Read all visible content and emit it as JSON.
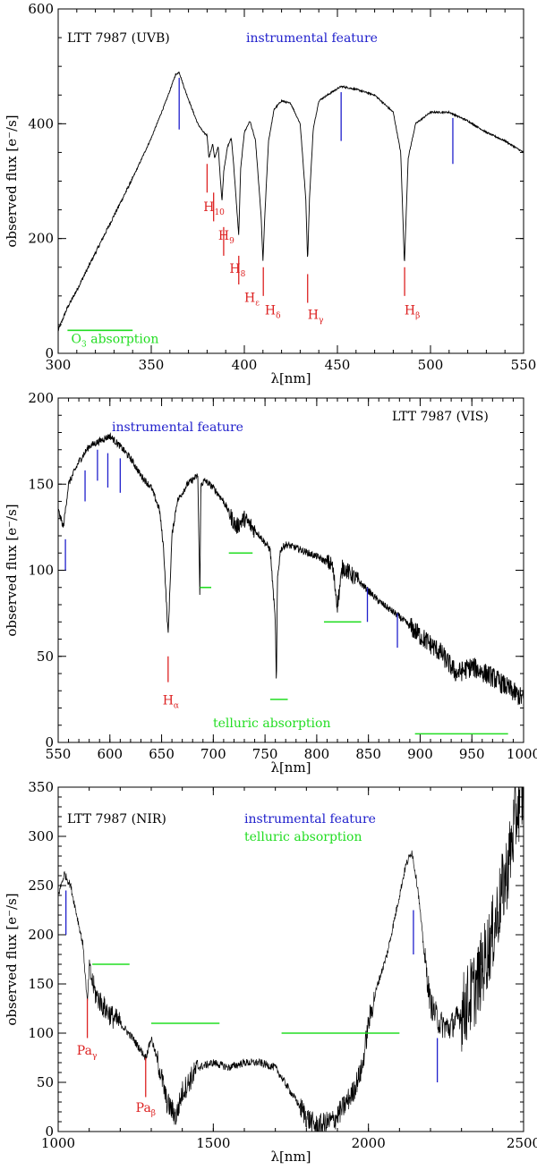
{
  "figure": {
    "colors": {
      "spectrum": "#000000",
      "instrumental": "#2020cc",
      "hydrogen": "#dd2222",
      "telluric": "#22dd22"
    }
  },
  "chart_data": [
    {
      "type": "line",
      "id": "uvb",
      "title": "LTT 7987 (UVB)",
      "xlabel": "λ[nm]",
      "ylabel": "observed flux [e⁻/s]",
      "xlim": [
        300,
        550
      ],
      "ylim": [
        0,
        600
      ],
      "xticks": [
        300,
        350,
        400,
        450,
        500,
        550
      ],
      "yticks": [
        0,
        200,
        400,
        600
      ],
      "xminor": 10,
      "yminor": 50,
      "legend": [
        {
          "text": "instrumental feature",
          "color_key": "instrumental"
        }
      ],
      "series": [
        {
          "name": "LTT 7987 UVB spectrum",
          "x": [
            300,
            305,
            310,
            320,
            330,
            340,
            350,
            358,
            363,
            365,
            368,
            372,
            375,
            378,
            380,
            381,
            383,
            384,
            386,
            387,
            388,
            389,
            391,
            393,
            394,
            396,
            397,
            398,
            400,
            403,
            406,
            409,
            410,
            411,
            413,
            416,
            420,
            425,
            430,
            433,
            434,
            435,
            437,
            440,
            447,
            452,
            460,
            470,
            480,
            484,
            486,
            488,
            492,
            500,
            510,
            520,
            530,
            540,
            550
          ],
          "y": [
            40,
            80,
            110,
            175,
            240,
            305,
            375,
            440,
            485,
            490,
            460,
            425,
            400,
            385,
            380,
            340,
            365,
            340,
            360,
            310,
            265,
            320,
            360,
            375,
            340,
            250,
            205,
            320,
            385,
            405,
            370,
            240,
            160,
            240,
            370,
            425,
            440,
            435,
            400,
            270,
            160,
            270,
            390,
            440,
            455,
            465,
            460,
            450,
            420,
            350,
            155,
            340,
            400,
            420,
            420,
            405,
            385,
            370,
            350
          ]
        }
      ],
      "markers": [
        {
          "x": 365,
          "y1": 390,
          "y2": 480,
          "color_key": "instrumental"
        },
        {
          "x": 452,
          "y1": 370,
          "y2": 455,
          "color_key": "instrumental"
        },
        {
          "x": 512,
          "y1": 330,
          "y2": 410,
          "color_key": "instrumental"
        },
        {
          "x": 380,
          "y1": 280,
          "y2": 330,
          "color_key": "hydrogen"
        },
        {
          "x": 383.5,
          "y1": 230,
          "y2": 280,
          "color_key": "hydrogen"
        },
        {
          "x": 388.9,
          "y1": 170,
          "y2": 220,
          "color_key": "hydrogen"
        },
        {
          "x": 397,
          "y1": 120,
          "y2": 170,
          "color_key": "hydrogen"
        },
        {
          "x": 410.2,
          "y1": 100,
          "y2": 150,
          "color_key": "hydrogen"
        },
        {
          "x": 434,
          "y1": 88,
          "y2": 138,
          "color_key": "hydrogen"
        },
        {
          "x": 486.1,
          "y1": 100,
          "y2": 150,
          "color_key": "hydrogen"
        }
      ],
      "bands": [
        {
          "x1": 305,
          "x2": 340,
          "y": 40,
          "color_key": "telluric"
        }
      ],
      "annotations": [
        {
          "base": "H",
          "sub": "10",
          "x": 378,
          "y": 248,
          "color_key": "hydrogen"
        },
        {
          "base": "H",
          "sub": "9",
          "x": 386,
          "y": 198,
          "color_key": "hydrogen"
        },
        {
          "base": "H",
          "sub": "8",
          "x": 392,
          "y": 140,
          "color_key": "hydrogen"
        },
        {
          "base": "H",
          "sub": "ε",
          "x": 400,
          "y": 90,
          "color_key": "hydrogen"
        },
        {
          "base": "H",
          "sub": "δ",
          "x": 411,
          "y": 68,
          "color_key": "hydrogen"
        },
        {
          "base": "H",
          "sub": "γ",
          "x": 434,
          "y": 60,
          "color_key": "hydrogen"
        },
        {
          "base": "H",
          "sub": "β",
          "x": 486,
          "y": 68,
          "color_key": "hydrogen"
        },
        {
          "base": "O",
          "sub": "3",
          "text": " absorption",
          "x": 307,
          "y": 18,
          "color_key": "telluric"
        }
      ]
    },
    {
      "type": "line",
      "id": "vis",
      "title": "LTT 7987 (VIS)",
      "xlabel": "λ[nm]",
      "ylabel": "observed flux [e⁻/s]",
      "xlim": [
        550,
        1000
      ],
      "ylim": [
        0,
        200
      ],
      "xticks": [
        550,
        600,
        650,
        700,
        750,
        800,
        850,
        900,
        950,
        1000
      ],
      "yticks": [
        0,
        50,
        100,
        150,
        200
      ],
      "xminor": 10,
      "yminor": 10,
      "legend": [
        {
          "text": "instrumental feature",
          "color_key": "instrumental"
        },
        {
          "text": "telluric absorption",
          "color_key": "telluric"
        }
      ],
      "series": [
        {
          "name": "LTT 7987 VIS spectrum",
          "x": [
            550,
            555,
            560,
            570,
            580,
            590,
            600,
            610,
            620,
            630,
            640,
            648,
            652,
            656.3,
            660,
            665,
            675,
            685,
            687,
            688,
            692,
            700,
            710,
            718,
            722,
            730,
            745,
            755,
            760,
            761,
            762,
            765,
            770,
            780,
            800,
            815,
            820,
            825,
            840,
            860,
            880,
            900,
            920,
            935,
            950,
            970,
            1000
          ],
          "y": [
            135,
            125,
            150,
            163,
            172,
            175,
            178,
            172,
            165,
            155,
            148,
            135,
            112,
            62,
            120,
            140,
            150,
            155,
            85,
            150,
            152,
            148,
            140,
            130,
            125,
            130,
            120,
            112,
            70,
            30,
            95,
            112,
            115,
            113,
            108,
            103,
            80,
            102,
            94,
            82,
            73,
            62,
            52,
            40,
            44,
            38,
            25
          ]
        }
      ],
      "markers": [
        {
          "x": 557,
          "y1": 100,
          "y2": 118,
          "color_key": "instrumental"
        },
        {
          "x": 576,
          "y1": 140,
          "y2": 158,
          "color_key": "instrumental"
        },
        {
          "x": 588,
          "y1": 152,
          "y2": 170,
          "color_key": "instrumental"
        },
        {
          "x": 598,
          "y1": 148,
          "y2": 168,
          "color_key": "instrumental"
        },
        {
          "x": 610,
          "y1": 145,
          "y2": 165,
          "color_key": "instrumental"
        },
        {
          "x": 849,
          "y1": 70,
          "y2": 90,
          "color_key": "instrumental"
        },
        {
          "x": 878,
          "y1": 55,
          "y2": 75,
          "color_key": "instrumental"
        },
        {
          "x": 656.3,
          "y1": 35,
          "y2": 50,
          "color_key": "hydrogen"
        }
      ],
      "bands": [
        {
          "x1": 687,
          "x2": 698,
          "y": 90,
          "color_key": "telluric"
        },
        {
          "x1": 715,
          "x2": 738,
          "y": 110,
          "color_key": "telluric"
        },
        {
          "x1": 755,
          "x2": 772,
          "y": 25,
          "color_key": "telluric"
        },
        {
          "x1": 807,
          "x2": 843,
          "y": 70,
          "color_key": "telluric"
        },
        {
          "x1": 895,
          "x2": 985,
          "y": 5,
          "color_key": "telluric"
        }
      ],
      "annotations": [
        {
          "base": "H",
          "sub": "α",
          "x": 651,
          "y": 22,
          "color_key": "hydrogen"
        }
      ]
    },
    {
      "type": "line",
      "id": "nir",
      "title": "LTT 7987 (NIR)",
      "xlabel": "λ[nm]",
      "ylabel": "observed flux [e⁻/s]",
      "xlim": [
        1000,
        2500
      ],
      "ylim": [
        0,
        350
      ],
      "xticks": [
        1000,
        1500,
        2000,
        2500
      ],
      "yticks": [
        0,
        50,
        100,
        150,
        200,
        250,
        300,
        350
      ],
      "xminor": 100,
      "yminor": 10,
      "legend": [
        {
          "text": "instrumental feature",
          "color_key": "instrumental"
        },
        {
          "text": "telluric absorption",
          "color_key": "telluric"
        }
      ],
      "series": [
        {
          "name": "LTT 7987 NIR spectrum",
          "x": [
            1000,
            1020,
            1040,
            1060,
            1080,
            1094,
            1100,
            1120,
            1150,
            1180,
            1200,
            1240,
            1282,
            1300,
            1330,
            1350,
            1380,
            1400,
            1450,
            1500,
            1550,
            1600,
            1650,
            1700,
            1740,
            1780,
            1800,
            1830,
            1860,
            1890,
            1920,
            1950,
            1980,
            2000,
            2030,
            2060,
            2080,
            2100,
            2120,
            2140,
            2160,
            2180,
            2200,
            2230,
            2260,
            2300,
            2350,
            2400,
            2450,
            2480,
            2500
          ],
          "y": [
            240,
            262,
            250,
            220,
            190,
            130,
            165,
            140,
            125,
            115,
            110,
            95,
            75,
            95,
            60,
            30,
            15,
            40,
            65,
            70,
            65,
            70,
            70,
            65,
            45,
            25,
            15,
            5,
            8,
            12,
            25,
            40,
            65,
            110,
            150,
            180,
            210,
            240,
            270,
            285,
            245,
            180,
            130,
            110,
            105,
            120,
            150,
            200,
            270,
            330,
            345
          ]
        }
      ],
      "markers": [
        {
          "x": 1025,
          "y1": 200,
          "y2": 245,
          "color_key": "instrumental"
        },
        {
          "x": 2145,
          "y1": 180,
          "y2": 225,
          "color_key": "instrumental"
        },
        {
          "x": 2222,
          "y1": 50,
          "y2": 95,
          "color_key": "instrumental"
        },
        {
          "x": 1094,
          "y1": 95,
          "y2": 135,
          "color_key": "hydrogen"
        },
        {
          "x": 1282,
          "y1": 35,
          "y2": 75,
          "color_key": "hydrogen"
        }
      ],
      "bands": [
        {
          "x1": 1110,
          "x2": 1230,
          "y": 170,
          "color_key": "telluric"
        },
        {
          "x1": 1300,
          "x2": 1520,
          "y": 110,
          "color_key": "telluric"
        },
        {
          "x1": 1720,
          "x2": 2100,
          "y": 100,
          "color_key": "telluric"
        }
      ],
      "annotations": [
        {
          "base": "Pa",
          "sub": "γ",
          "x": 1060,
          "y": 78,
          "color_key": "hydrogen"
        },
        {
          "base": "Pa",
          "sub": "β",
          "x": 1250,
          "y": 20,
          "color_key": "hydrogen"
        }
      ]
    }
  ]
}
